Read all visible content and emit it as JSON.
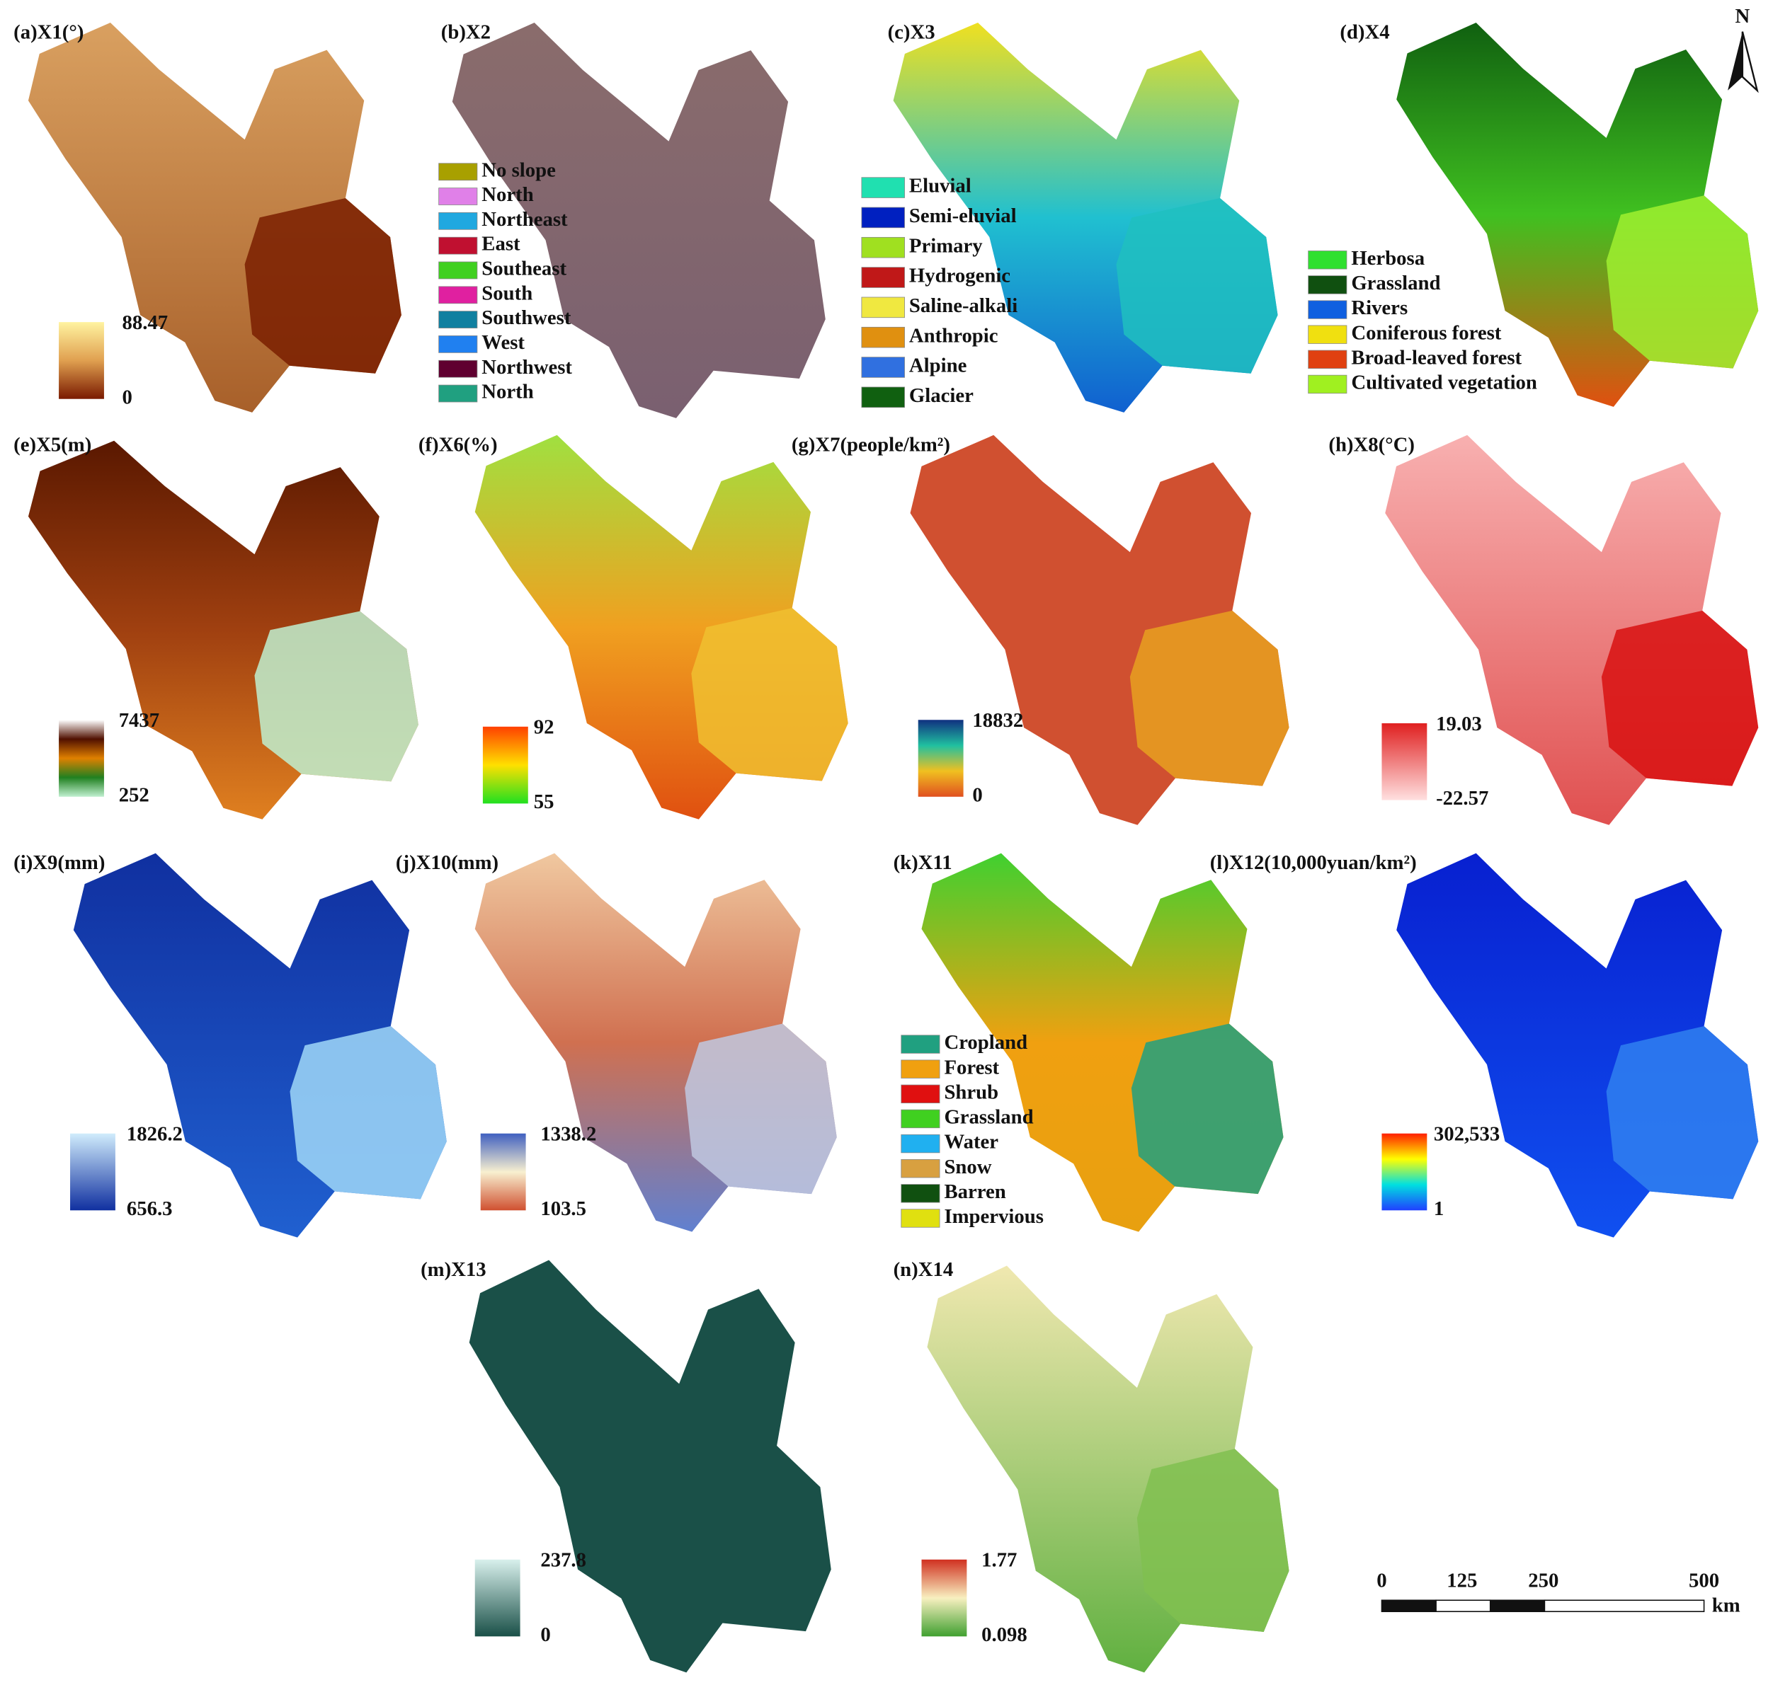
{
  "panels": [
    {
      "title": "(a)X1(°)",
      "legend_max": "88.47",
      "legend_min": "0"
    },
    {
      "title": "(b)X2",
      "legend": [
        "No slope",
        "North",
        "Northeast",
        "East",
        "Southeast",
        "South",
        "Southwest",
        "West",
        "Northwest",
        "North"
      ]
    },
    {
      "title": "(c)X3",
      "legend": [
        "Eluvial",
        "Semi-eluvial",
        "Primary",
        "Hydrogenic",
        "Saline-alkali",
        "Anthropic",
        "Alpine",
        "Glacier"
      ]
    },
    {
      "title": "(d)X4",
      "legend": [
        "Herbosa",
        "Grassland",
        "Rivers",
        "Coniferous forest",
        "Broad-leaved forest",
        "Cultivated vegetation"
      ]
    },
    {
      "title": "(e)X5(m)",
      "legend_max": "7437",
      "legend_min": "252"
    },
    {
      "title": "(f)X6(%)",
      "legend_max": "92",
      "legend_min": "55"
    },
    {
      "title": "(g)X7(people/km²)",
      "legend_max": "18832",
      "legend_min": "0"
    },
    {
      "title": "(h)X8(°C)",
      "legend_max": "19.03",
      "legend_min": "-22.57"
    },
    {
      "title": "(i)X9(mm)",
      "legend_max": "1826.2",
      "legend_min": "656.3"
    },
    {
      "title": "(j)X10(mm)",
      "legend_max": "1338.2",
      "legend_min": "103.5"
    },
    {
      "title": "(k)X11",
      "legend": [
        "Cropland",
        "Forest",
        "Shrub",
        "Grassland",
        "Water",
        "Snow",
        "Barren",
        "Impervious"
      ]
    },
    {
      "title": "(l)X12(10,000yuan/km²)",
      "legend_max": "302,533",
      "legend_min": "1"
    },
    {
      "title": "(m)X13",
      "legend_max": "237.8",
      "legend_min": "0"
    },
    {
      "title": "(n)X14",
      "legend_max": "1.77",
      "legend_min": "0.098"
    }
  ],
  "north": "N",
  "scale_bar": {
    "labels": [
      "0",
      "125",
      "250",
      "500"
    ],
    "unit": "km"
  }
}
